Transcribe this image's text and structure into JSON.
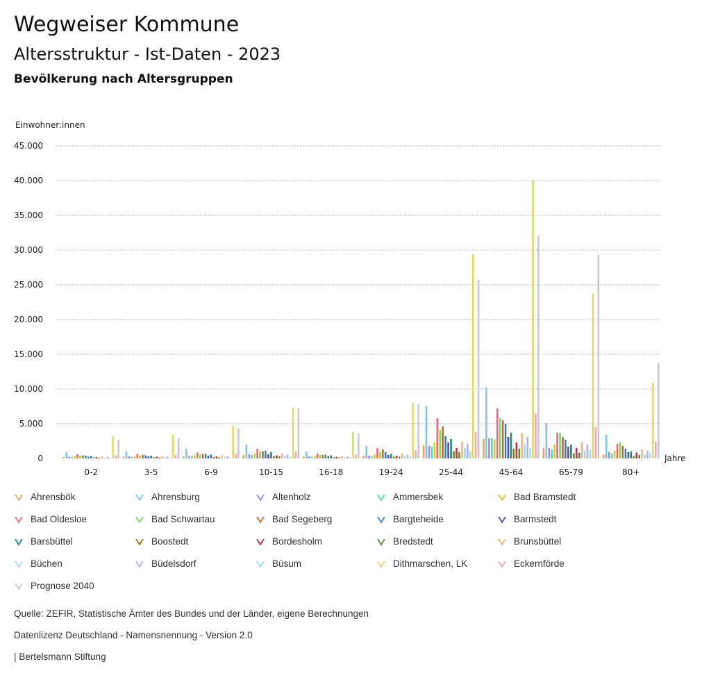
{
  "header": {
    "title": "Wegweiser Kommune",
    "subtitle": "Altersstruktur - Ist-Daten - 2023",
    "chart_title": "Bevölkerung nach Altersgruppen"
  },
  "footer": {
    "source": "Quelle: ZEFIR, Statistische Ämter des Bundes und der Länder, eigene Berechnungen",
    "license": "Datenlizenz Deutschland - Namensnennung - Version 2.0",
    "publisher": "| Bertelsmann Stiftung"
  },
  "chart_data": {
    "type": "bar",
    "title": "Bevölkerung nach Altersgruppen",
    "ylabel": "Einwohner:innen",
    "xlabel": "Jahre",
    "ylim": [
      0,
      45000
    ],
    "yticks": [
      0,
      5000,
      10000,
      15000,
      20000,
      25000,
      30000,
      35000,
      40000,
      45000
    ],
    "ytick_labels": [
      "0",
      "5.000",
      "10.000",
      "15.000",
      "20.000",
      "25.000",
      "30.000",
      "35.000",
      "40.000",
      "45.000"
    ],
    "grid": true,
    "legend_position": "bottom",
    "categories": [
      "0-2",
      "3-5",
      "6-9",
      "10-15",
      "16-18",
      "19-24",
      "25-44",
      "45-64",
      "65-79",
      "80+"
    ],
    "series": [
      {
        "name": "Ahrensbök",
        "color": "#f0a35e",
        "values": [
          200,
          250,
          300,
          500,
          250,
          400,
          1900,
          2800,
          1500,
          550
        ]
      },
      {
        "name": "Ahrensburg",
        "color": "#7ec4ee",
        "values": [
          900,
          1000,
          1400,
          2000,
          1000,
          1800,
          7500,
          10200,
          5100,
          3400
        ]
      },
      {
        "name": "Altenholz",
        "color": "#9a8ce6",
        "values": [
          250,
          300,
          350,
          600,
          300,
          400,
          1800,
          2900,
          1500,
          950
        ]
      },
      {
        "name": "Ammersbek",
        "color": "#5fd4c0",
        "values": [
          200,
          250,
          300,
          500,
          250,
          300,
          1700,
          2900,
          1300,
          700
        ]
      },
      {
        "name": "Bad Bramstedt",
        "color": "#e3c92a",
        "values": [
          300,
          350,
          450,
          700,
          350,
          600,
          2300,
          2700,
          2000,
          1100
        ]
      },
      {
        "name": "Bad Oldesloe",
        "color": "#e86a78",
        "values": [
          600,
          650,
          850,
          1400,
          700,
          1500,
          5800,
          7200,
          3700,
          2100
        ]
      },
      {
        "name": "Bad Schwartau",
        "color": "#92d05a",
        "values": [
          400,
          450,
          600,
          1000,
          500,
          1000,
          4100,
          5800,
          3700,
          2300
        ]
      },
      {
        "name": "Bad Segeberg",
        "color": "#b5703a",
        "values": [
          450,
          500,
          650,
          1000,
          500,
          1300,
          4600,
          5500,
          3100,
          1800
        ]
      },
      {
        "name": "Bargteheide",
        "color": "#3f7fb8",
        "values": [
          400,
          450,
          650,
          1100,
          550,
          900,
          3200,
          5000,
          2700,
          1400
        ]
      },
      {
        "name": "Barmstedt",
        "color": "#5450a8",
        "values": [
          250,
          300,
          400,
          600,
          300,
          500,
          2300,
          3100,
          1700,
          900
        ]
      },
      {
        "name": "Barsbüttel",
        "color": "#1f8a76",
        "values": [
          350,
          400,
          550,
          900,
          450,
          650,
          2800,
          3700,
          2000,
          1000
        ]
      },
      {
        "name": "Boostedt",
        "color": "#8a7b18",
        "values": [
          130,
          150,
          200,
          300,
          160,
          250,
          1000,
          1400,
          700,
          350
        ]
      },
      {
        "name": "Bordesholm",
        "color": "#b8344f",
        "values": [
          200,
          250,
          300,
          450,
          250,
          400,
          1500,
          2300,
          1500,
          850
        ]
      },
      {
        "name": "Bredstedt",
        "color": "#5a8a2c",
        "values": [
          100,
          120,
          150,
          300,
          150,
          250,
          900,
          1400,
          800,
          500
        ]
      },
      {
        "name": "Brunsbüttel",
        "color": "#eeb88a",
        "values": [
          300,
          350,
          450,
          700,
          350,
          700,
          2400,
          3600,
          2400,
          1300
        ]
      },
      {
        "name": "Büchen",
        "color": "#a4d6f2",
        "values": [
          150,
          180,
          250,
          400,
          200,
          350,
          1500,
          2000,
          1100,
          500
        ]
      },
      {
        "name": "Büdelsdorf",
        "color": "#b8aee8",
        "values": [
          250,
          280,
          350,
          550,
          300,
          500,
          2100,
          3100,
          2000,
          1100
        ]
      },
      {
        "name": "Büsum",
        "color": "#9ee2d6",
        "values": [
          100,
          120,
          150,
          250,
          150,
          300,
          1000,
          1500,
          1200,
          800
        ]
      },
      {
        "name": "Dithmarschen, LK",
        "color": "#e2d66e",
        "values": [
          3200,
          3400,
          4700,
          7300,
          3800,
          8000,
          29400,
          40000,
          23700,
          10900
        ]
      },
      {
        "name": "Eckernförde",
        "color": "#f2a5b6",
        "values": [
          450,
          500,
          650,
          1000,
          550,
          1200,
          3800,
          6400,
          4500,
          2400
        ]
      },
      {
        "name": "Prognose 2040",
        "color": "#c8c8c8",
        "values": [
          2700,
          2900,
          4300,
          7200,
          3600,
          7800,
          25700,
          32100,
          29300,
          13700
        ]
      }
    ]
  }
}
